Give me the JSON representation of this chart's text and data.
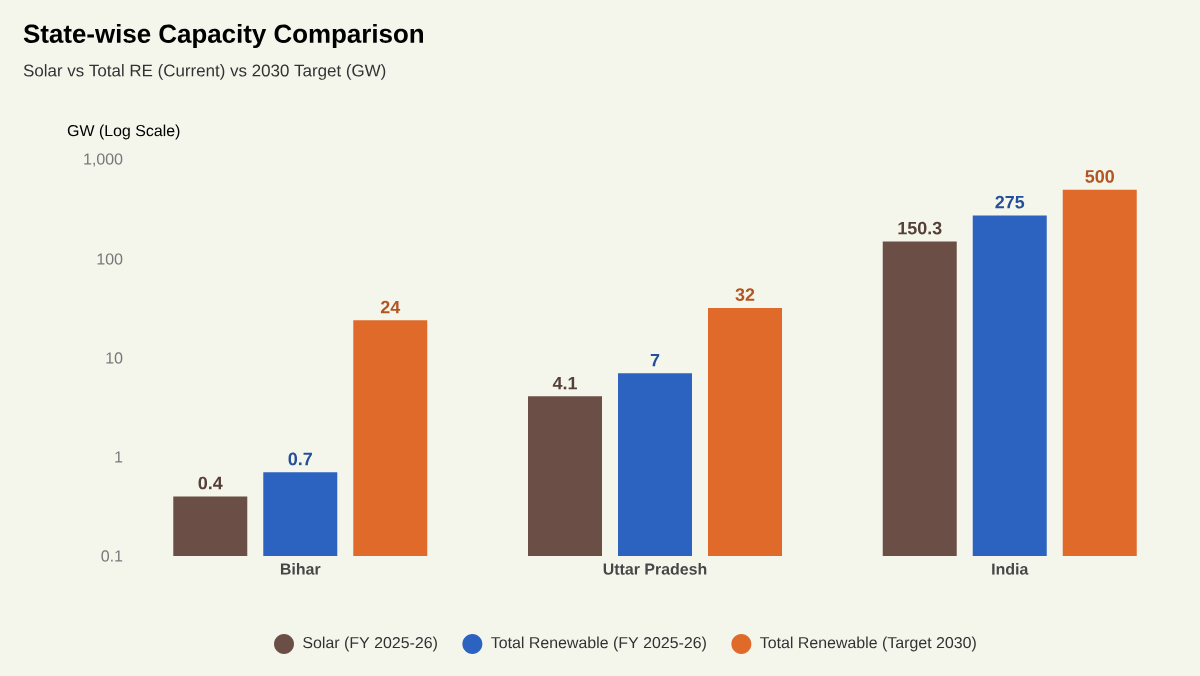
{
  "chart_data": {
    "type": "bar",
    "title": "State-wise Capacity Comparison",
    "subtitle": "Solar vs Total RE (Current) vs 2030 Target (GW)",
    "ylabel": "GW (Log Scale)",
    "categories": [
      "Bihar",
      "Uttar Pradesh",
      "India"
    ],
    "series": [
      {
        "name": "Solar (FY 2025-26)",
        "color": "#6b4f47",
        "values": [
          0.4,
          4.1,
          150.3
        ]
      },
      {
        "name": "Total Renewable (FY 2025-26)",
        "color": "#2d63c0",
        "values": [
          0.7,
          7,
          275
        ]
      },
      {
        "name": "Total Renewable (Target 2030)",
        "color": "#e06a2a",
        "values": [
          24,
          32,
          500
        ]
      }
    ],
    "log": true,
    "ylim": [
      0.1,
      1000
    ],
    "yticks": [
      0.1,
      1,
      10,
      100,
      {
        "value": 1000,
        "label": "1,000"
      }
    ],
    "data_labels": true,
    "legend": "bottom",
    "grid": false
  }
}
